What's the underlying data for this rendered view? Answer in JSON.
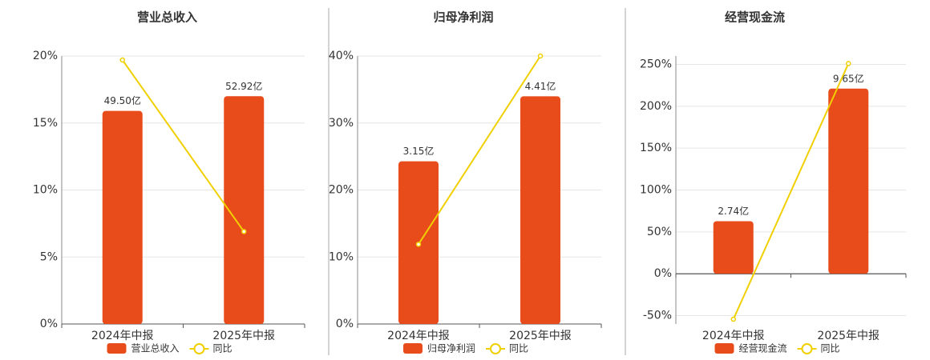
{
  "chart_data": [
    {
      "type": "bar",
      "title": "营业总收入",
      "categories": [
        "2024年中报",
        "2025年中报"
      ],
      "series": [
        {
          "name": "营业总收入",
          "color": "#e84c1a",
          "values": [
            49.5,
            52.92
          ],
          "value_labels": [
            "49.50亿",
            "52.92亿"
          ],
          "axis": "y2"
        },
        {
          "name": "同比",
          "color": "#f0d000",
          "values": [
            19.7,
            6.9
          ]
        }
      ],
      "ylim": [
        0,
        20
      ],
      "yticks": [
        {
          "value": 0,
          "label": "0%"
        },
        {
          "value": 5,
          "label": "5%"
        },
        {
          "value": 10,
          "label": "10%"
        },
        {
          "value": 15,
          "label": "15%"
        },
        {
          "value": 20,
          "label": "20%"
        }
      ],
      "y2lim": [
        0,
        62.26
      ],
      "grid": true
    },
    {
      "type": "bar",
      "title": "归母净利润",
      "categories": [
        "2024年中报",
        "2025年中报"
      ],
      "series": [
        {
          "name": "归母净利润",
          "color": "#e84c1a",
          "values": [
            3.15,
            4.41
          ],
          "value_labels": [
            "3.15亿",
            "4.41亿"
          ],
          "axis": "y2"
        },
        {
          "name": "同比",
          "color": "#f0d000",
          "values": [
            11.9,
            40.0
          ]
        }
      ],
      "ylim": [
        0,
        40
      ],
      "yticks": [
        {
          "value": 0,
          "label": "0%"
        },
        {
          "value": 10,
          "label": "10%"
        },
        {
          "value": 20,
          "label": "20%"
        },
        {
          "value": 30,
          "label": "30%"
        },
        {
          "value": 40,
          "label": "40%"
        }
      ],
      "y2lim": [
        0,
        5.19
      ],
      "grid": true
    },
    {
      "type": "bar",
      "title": "经营现金流",
      "categories": [
        "2024年中报",
        "2025年中报"
      ],
      "series": [
        {
          "name": "经营现金流",
          "color": "#e84c1a",
          "values": [
            2.74,
            9.65
          ],
          "value_labels": [
            "2.74亿",
            "9.65亿"
          ],
          "axis": "y2"
        },
        {
          "name": "同比",
          "color": "#f0d000",
          "values": [
            -54.3,
            251
          ]
        }
      ],
      "ylim": [
        -60,
        260
      ],
      "yticks": [
        {
          "value": -50,
          "label": "-50%"
        },
        {
          "value": 0,
          "label": "0%"
        },
        {
          "value": 50,
          "label": "50%"
        },
        {
          "value": 100,
          "label": "100%"
        },
        {
          "value": 150,
          "label": "150%"
        },
        {
          "value": 200,
          "label": "200%"
        },
        {
          "value": 250,
          "label": "250%"
        }
      ],
      "y2lim": [
        -2.62,
        11.35
      ],
      "grid": true
    }
  ]
}
